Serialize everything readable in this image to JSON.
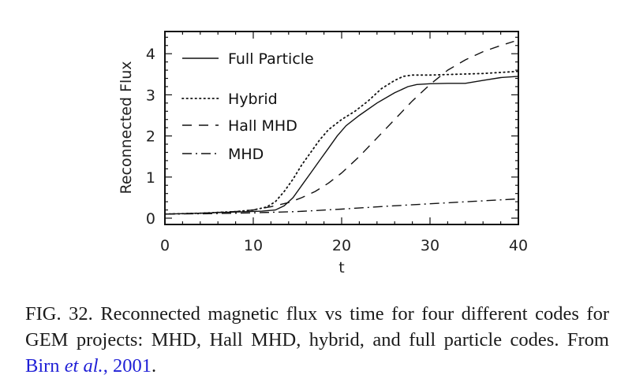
{
  "chart_data": {
    "type": "line",
    "title": "",
    "xlabel": "t",
    "ylabel": "Reconnected Flux",
    "xlim": [
      0,
      40
    ],
    "ylim": [
      -0.15,
      4.4
    ],
    "xticks": [
      0,
      10,
      20,
      30,
      40
    ],
    "xtick_labels": [
      "0",
      "10",
      "20",
      "30",
      "40"
    ],
    "yticks": [
      0,
      1,
      2,
      3,
      4
    ],
    "ytick_labels": [
      "0",
      "1",
      "2",
      "3",
      "4"
    ],
    "grid": false,
    "legend_position": "top-left",
    "series": [
      {
        "name": "Full Particle",
        "style": "solid",
        "x": [
          0,
          4,
          8,
          11,
          12.5,
          13.5,
          14.5,
          15.5,
          16.5,
          17.5,
          18.5,
          19.5,
          20.5,
          22,
          24,
          26,
          27.5,
          28.5,
          30,
          32,
          34,
          36,
          38,
          40
        ],
        "y": [
          0.1,
          0.12,
          0.15,
          0.17,
          0.2,
          0.3,
          0.5,
          0.8,
          1.1,
          1.4,
          1.7,
          2.0,
          2.25,
          2.5,
          2.8,
          3.05,
          3.2,
          3.25,
          3.27,
          3.28,
          3.28,
          3.35,
          3.42,
          3.45
        ]
      },
      {
        "name": "Hybrid",
        "style": "dotted",
        "x": [
          0,
          4,
          8,
          10,
          11.5,
          12.5,
          13.5,
          14.5,
          15.5,
          16.5,
          17.5,
          18.5,
          20,
          21.5,
          23,
          24.5,
          26,
          27,
          28,
          30,
          33,
          36,
          40
        ],
        "y": [
          0.1,
          0.12,
          0.16,
          0.2,
          0.27,
          0.4,
          0.65,
          0.95,
          1.3,
          1.6,
          1.9,
          2.15,
          2.4,
          2.6,
          2.85,
          3.15,
          3.35,
          3.45,
          3.48,
          3.48,
          3.5,
          3.52,
          3.57
        ]
      },
      {
        "name": "Hall MHD",
        "style": "dashed",
        "x": [
          0,
          4,
          8,
          10,
          12,
          14,
          15.5,
          17,
          18.5,
          20,
          22,
          24,
          26,
          28,
          30,
          32,
          34,
          36,
          38,
          39.5
        ],
        "y": [
          0.1,
          0.12,
          0.16,
          0.2,
          0.28,
          0.38,
          0.5,
          0.65,
          0.85,
          1.1,
          1.5,
          1.95,
          2.4,
          2.85,
          3.25,
          3.6,
          3.85,
          4.05,
          4.2,
          4.3
        ]
      },
      {
        "name": "MHD",
        "style": "dash-dot",
        "x": [
          0,
          5,
          10,
          15,
          20,
          25,
          30,
          35,
          40
        ],
        "y": [
          0.1,
          0.11,
          0.13,
          0.16,
          0.22,
          0.29,
          0.35,
          0.41,
          0.47
        ]
      }
    ]
  },
  "caption": {
    "text": "FIG. 32. Reconnected magnetic flux vs time for four different codes for GEM projects: MHD, Hall MHD, hybrid, and full particle codes. From ",
    "ref_author": "Birn ",
    "ref_etal": "et al.",
    "ref_year": ", 2001",
    "end": "."
  }
}
